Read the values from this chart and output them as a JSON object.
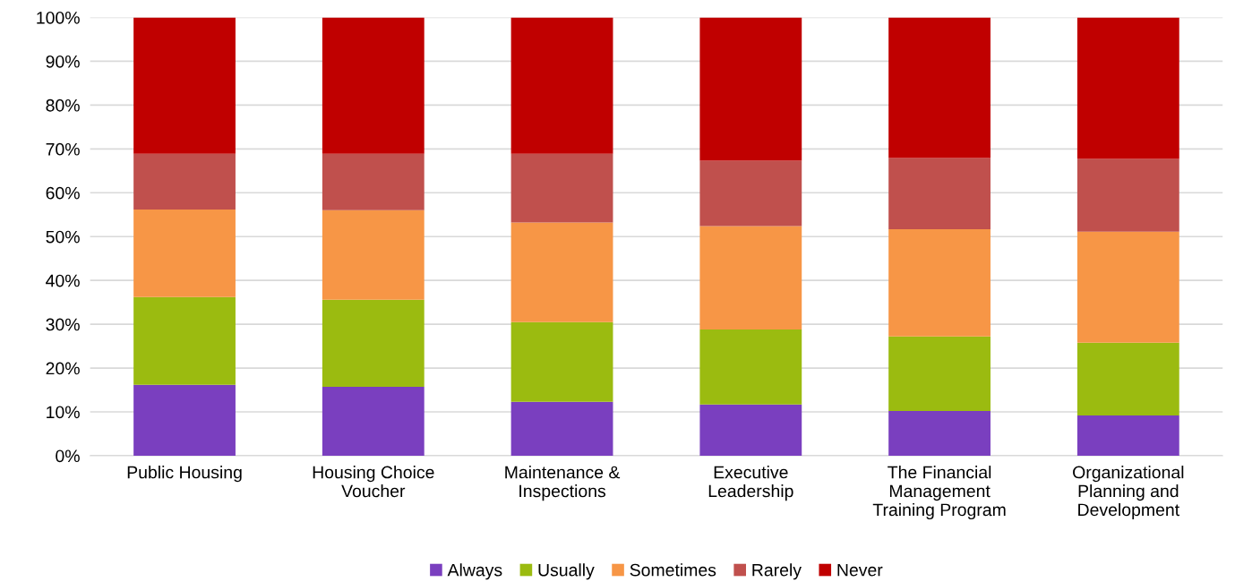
{
  "chart_data": {
    "type": "bar",
    "stacked": true,
    "categories": [
      "Public Housing",
      "Housing Choice\nVoucher",
      "Maintenance &\nInspections",
      "Executive\nLeadership",
      "The Financial\nManagement\nTraining Program",
      "Organizational\nPlanning and\nDevelopment"
    ],
    "series": [
      {
        "name": "Always",
        "color": "#7a3fbf",
        "values": [
          16.2,
          15.7,
          12.3,
          11.7,
          10.2,
          9.2
        ]
      },
      {
        "name": "Usually",
        "color": "#9bbb10",
        "values": [
          20.0,
          19.9,
          18.2,
          17.1,
          17.0,
          16.6
        ]
      },
      {
        "name": "Sometimes",
        "color": "#f79646",
        "values": [
          20.0,
          20.4,
          22.7,
          23.6,
          24.5,
          25.3
        ]
      },
      {
        "name": "Rarely",
        "color": "#c0504d",
        "values": [
          12.7,
          12.9,
          15.7,
          14.9,
          16.2,
          16.6
        ]
      },
      {
        "name": "Never",
        "color": "#c00000",
        "values": [
          31.1,
          31.1,
          31.1,
          32.7,
          32.1,
          32.3
        ]
      }
    ],
    "ylim": [
      0,
      100
    ],
    "yticks": [
      {
        "value": 0,
        "label": "0%"
      },
      {
        "value": 10,
        "label": "10%"
      },
      {
        "value": 20,
        "label": "20%"
      },
      {
        "value": 30,
        "label": "30%"
      },
      {
        "value": 40,
        "label": "40%"
      },
      {
        "value": 50,
        "label": "50%"
      },
      {
        "value": 60,
        "label": "60%"
      },
      {
        "value": 70,
        "label": "70%"
      },
      {
        "value": 80,
        "label": "80%"
      },
      {
        "value": 90,
        "label": "90%"
      },
      {
        "value": 100,
        "label": "100%"
      }
    ],
    "grid": "y",
    "legend": "bottom"
  }
}
